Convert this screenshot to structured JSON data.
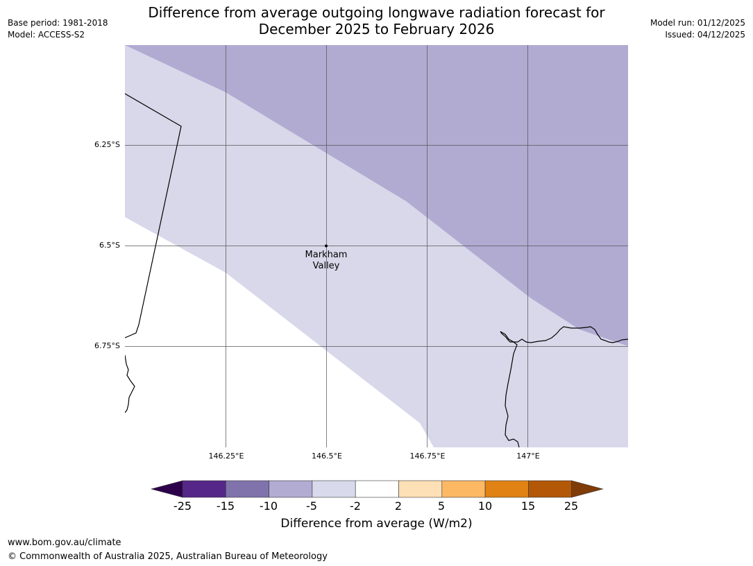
{
  "header": {
    "base_period": "Base period: 1981-2018",
    "model": "Model: ACCESS-S2",
    "model_run": "Model run: 01/12/2025",
    "issued": "Issued: 04/12/2025",
    "title_line1": "Difference from average outgoing longwave radiation forecast for",
    "title_line2": "December 2025 to February 2026"
  },
  "map": {
    "lat_labels": [
      "6.25°S",
      "6.5°S",
      "6.75°S"
    ],
    "lon_labels": [
      "146.25°E",
      "146.5°E",
      "146.75°E",
      "147°E"
    ],
    "place": {
      "name_line1": "Markham",
      "name_line2": "Valley",
      "lat": -6.5,
      "lon": 146.5
    },
    "shading_classes": [
      {
        "range": "-10 to -5",
        "color": "#b1abd2"
      },
      {
        "range": "-5 to -2",
        "color": "#d8d8ea"
      },
      {
        "range": "-2 to 2",
        "color": "#ffffff"
      }
    ]
  },
  "colorbar": {
    "ticks": [
      "-25",
      "-15",
      "-10",
      "-5",
      "-2",
      "2",
      "5",
      "10",
      "15",
      "25"
    ],
    "colors": [
      "#2d004b",
      "#542788",
      "#8073ac",
      "#b2abd2",
      "#d8daeb",
      "#ffffff",
      "#fee0b6",
      "#fdb863",
      "#e08214",
      "#b35806",
      "#7f3b08"
    ],
    "title": "Difference from average (W/m2)"
  },
  "footer": {
    "url": "www.bom.gov.au/climate",
    "copyright": "© Commonwealth of Australia 2025, Australian Bureau of Meteorology"
  }
}
